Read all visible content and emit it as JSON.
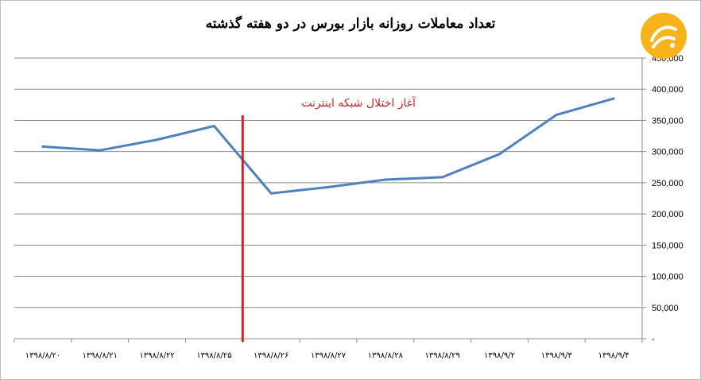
{
  "chart_data": {
    "type": "line",
    "title": "تعداد معاملات  روزانه بازار بورس در دو هفته گذشته",
    "categories": [
      "۱۳۹۸/۸/۲۰",
      "۱۳۹۸/۸/۲۱",
      "۱۳۹۸/۸/۲۲",
      "۱۳۹۸/۸/۲۵",
      "۱۳۹۸/۸/۲۶",
      "۱۳۹۸/۸/۲۷",
      "۱۳۹۸/۸/۲۸",
      "۱۳۹۸/۸/۲۹",
      "۱۳۹۸/۹/۲",
      "۱۳۹۸/۹/۳",
      "۱۳۹۸/۹/۴"
    ],
    "series": [
      {
        "values": [
          308000,
          302000,
          319000,
          341000,
          233000,
          243000,
          255000,
          259000,
          296000,
          359000,
          385000
        ]
      }
    ],
    "ylim": [
      0,
      450000
    ],
    "y_ticks": [
      "-",
      "50,000",
      "100,000",
      "150,000",
      "200,000",
      "250,000",
      "300,000",
      "350,000",
      "400,000",
      "450,000"
    ],
    "y_axis_side": "right",
    "grid": true,
    "line_color": "#4f81bd",
    "annotation": {
      "text": "آغاز اختلال شبکه اینترنت",
      "between": [
        "۱۳۹۸/۸/۲۵",
        "۱۳۹۸/۸/۲۶"
      ],
      "color": "#d0202a"
    }
  },
  "logo": {
    "name": "news-agency-logo",
    "color": "#f6b31a"
  }
}
